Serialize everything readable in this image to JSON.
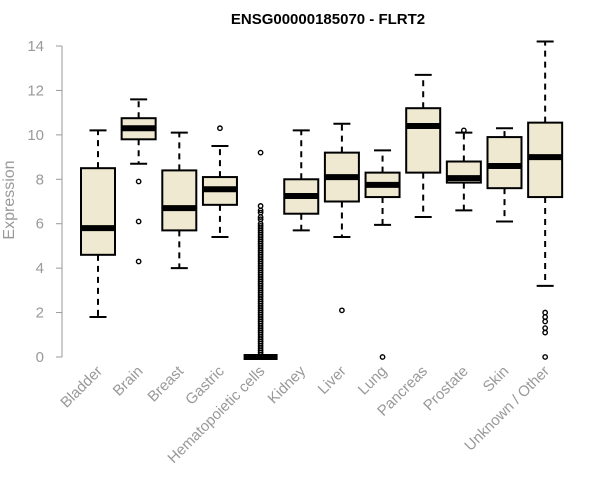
{
  "chart_data": {
    "type": "boxplot",
    "title": "ENSG00000185070 - FLRT2",
    "xlabel": "",
    "ylabel": "Expression",
    "ylim": [
      0,
      14
    ],
    "yticks": [
      0,
      2,
      4,
      6,
      8,
      10,
      12,
      14
    ],
    "colors": {
      "box_fill": "#efe9d1",
      "stroke": "#000000",
      "axis": "#999999"
    },
    "categories": [
      "Bladder",
      "Brain",
      "Breast",
      "Gastric",
      "Hematopoietic cells",
      "Kidney",
      "Liver",
      "Lung",
      "Pancreas",
      "Prostate",
      "Skin",
      "Unknown / Other"
    ],
    "boxes": [
      {
        "name": "Bladder",
        "whisker_low": 1.8,
        "q1": 4.6,
        "median": 5.8,
        "q3": 8.5,
        "whisker_high": 10.2,
        "outliers": []
      },
      {
        "name": "Brain",
        "whisker_low": 8.7,
        "q1": 9.8,
        "median": 10.3,
        "q3": 10.75,
        "whisker_high": 11.6,
        "outliers": [
          7.9,
          6.1,
          4.3
        ]
      },
      {
        "name": "Breast",
        "whisker_low": 4.0,
        "q1": 5.7,
        "median": 6.7,
        "q3": 8.4,
        "whisker_high": 10.1,
        "outliers": []
      },
      {
        "name": "Gastric",
        "whisker_low": 5.4,
        "q1": 6.85,
        "median": 7.55,
        "q3": 8.1,
        "whisker_high": 9.5,
        "outliers": [
          10.3
        ]
      },
      {
        "name": "Hematopoietic cells",
        "whisker_low": 0.0,
        "q1": 0.0,
        "median": 0.0,
        "q3": 0.0,
        "whisker_high": 0.0,
        "outliers": [
          9.2,
          6.8,
          6.6,
          6.5,
          6.3,
          6.2,
          6.0,
          5.9,
          5.8,
          5.7,
          5.6,
          5.5,
          5.4,
          5.3,
          5.2,
          5.1,
          5.0,
          4.9,
          4.8,
          4.7,
          4.6,
          4.5,
          4.4,
          4.3,
          4.2,
          4.1,
          4.0,
          3.9,
          3.8,
          3.7,
          3.6,
          3.5,
          3.4,
          3.3,
          3.2,
          3.1,
          3.0,
          2.9,
          2.8,
          2.7,
          2.6,
          2.5,
          2.4,
          2.3,
          2.2,
          2.1,
          2.0,
          1.9,
          1.8,
          1.7,
          1.6,
          1.5,
          1.4,
          1.3,
          1.2,
          1.1,
          1.0,
          0.9,
          0.8,
          0.7,
          0.6,
          0.5,
          0.4,
          0.3,
          0.2,
          0.1
        ]
      },
      {
        "name": "Kidney",
        "whisker_low": 5.7,
        "q1": 6.45,
        "median": 7.25,
        "q3": 8.0,
        "whisker_high": 10.2,
        "outliers": []
      },
      {
        "name": "Liver",
        "whisker_low": 5.4,
        "q1": 7.0,
        "median": 8.1,
        "q3": 9.2,
        "whisker_high": 10.5,
        "outliers": [
          2.1
        ]
      },
      {
        "name": "Lung",
        "whisker_low": 5.95,
        "q1": 7.2,
        "median": 7.75,
        "q3": 8.3,
        "whisker_high": 9.3,
        "outliers": [
          0.0
        ]
      },
      {
        "name": "Pancreas",
        "whisker_low": 6.3,
        "q1": 8.3,
        "median": 10.4,
        "q3": 11.2,
        "whisker_high": 12.7,
        "outliers": []
      },
      {
        "name": "Prostate",
        "whisker_low": 6.6,
        "q1": 7.85,
        "median": 8.05,
        "q3": 8.8,
        "whisker_high": 10.1,
        "outliers": [
          10.2
        ]
      },
      {
        "name": "Skin",
        "whisker_low": 6.1,
        "q1": 7.6,
        "median": 8.6,
        "q3": 9.9,
        "whisker_high": 10.3,
        "outliers": []
      },
      {
        "name": "Unknown / Other",
        "whisker_low": 3.2,
        "q1": 7.2,
        "median": 9.0,
        "q3": 10.55,
        "whisker_high": 14.2,
        "outliers": [
          2.0,
          1.8,
          1.6,
          1.3,
          1.1,
          0.0
        ]
      }
    ]
  }
}
